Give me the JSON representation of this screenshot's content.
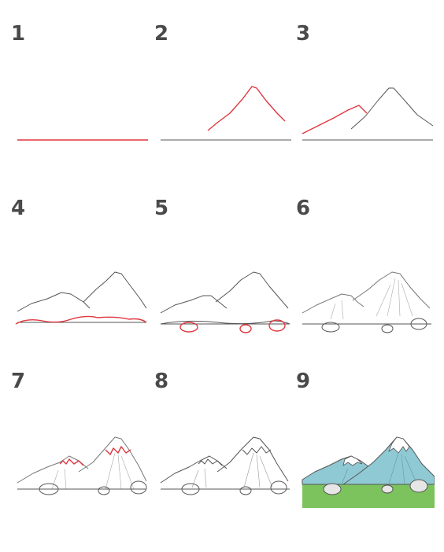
{
  "steps": [
    {
      "number": "1"
    },
    {
      "number": "2"
    },
    {
      "number": "3"
    },
    {
      "number": "4"
    },
    {
      "number": "5"
    },
    {
      "number": "6"
    },
    {
      "number": "7"
    },
    {
      "number": "8"
    },
    {
      "number": "9"
    }
  ],
  "colors": {
    "line": "#555555",
    "highlight": "#e0363f",
    "number": "#4a4a4a",
    "mountain_fill": "#8fc9d4",
    "snow": "#ffffff",
    "grass": "#7cc35d",
    "rock_fill": "#e6e6e6"
  }
}
